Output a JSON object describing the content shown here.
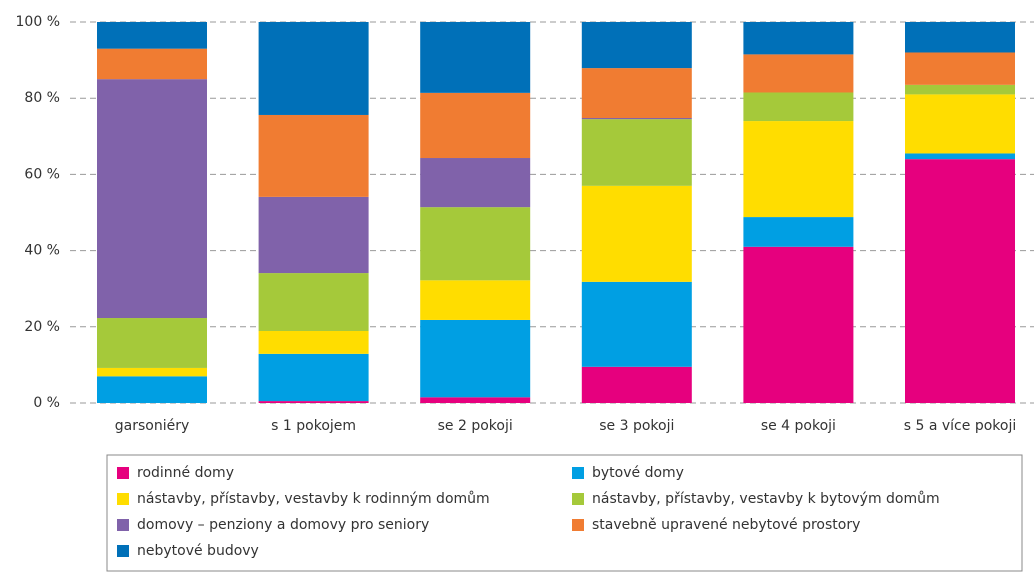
{
  "chart_data": {
    "type": "stacked_bar",
    "categories": [
      "garsoniéry",
      "s 1 pokojem",
      "se 2 pokoji",
      "se 3 pokoji",
      "se 4 pokoji",
      "s 5 a více pokoji"
    ],
    "series": [
      {
        "name": "rodinné domy",
        "color": "#e6007e",
        "values": [
          0,
          0.5,
          1.5,
          9.5,
          41,
          64
        ]
      },
      {
        "name": "bytové domy",
        "color": "#009fe3",
        "values": [
          7,
          12.4,
          20.3,
          22.3,
          7.8,
          1.5
        ]
      },
      {
        "name": "nástavby, přístavby, vestavby k rodinným domům",
        "color": "#ffdd00",
        "values": [
          2.2,
          6,
          10.4,
          25.2,
          25.2,
          15.5
        ]
      },
      {
        "name": "nástavby, přístavby, vestavby k bytovým domům",
        "color": "#a5c93a",
        "values": [
          13.1,
          15.2,
          19.2,
          17.5,
          7.5,
          2.5
        ]
      },
      {
        "name": "domovy – penziony a domovy pro seniory",
        "color": "#8062aa",
        "values": [
          62.7,
          20,
          12.9,
          0.3,
          0,
          0
        ]
      },
      {
        "name": "stavebně upravené nebytové prostory",
        "color": "#f07c32",
        "values": [
          8,
          21.5,
          17.1,
          13.1,
          10,
          8.5
        ]
      },
      {
        "name": "nebytové budovy",
        "color": "#0070b8",
        "values": [
          7,
          24.4,
          18.6,
          12.1,
          8.5,
          8
        ]
      }
    ],
    "ylim": [
      0,
      100
    ],
    "yticks": [
      {
        "value": 0,
        "label": "0 %"
      },
      {
        "value": 20,
        "label": "20 %"
      },
      {
        "value": 40,
        "label": "40 %"
      },
      {
        "value": 60,
        "label": "60 %"
      },
      {
        "value": 80,
        "label": "80 %"
      },
      {
        "value": 100,
        "label": "100 %"
      }
    ],
    "grid": true
  }
}
